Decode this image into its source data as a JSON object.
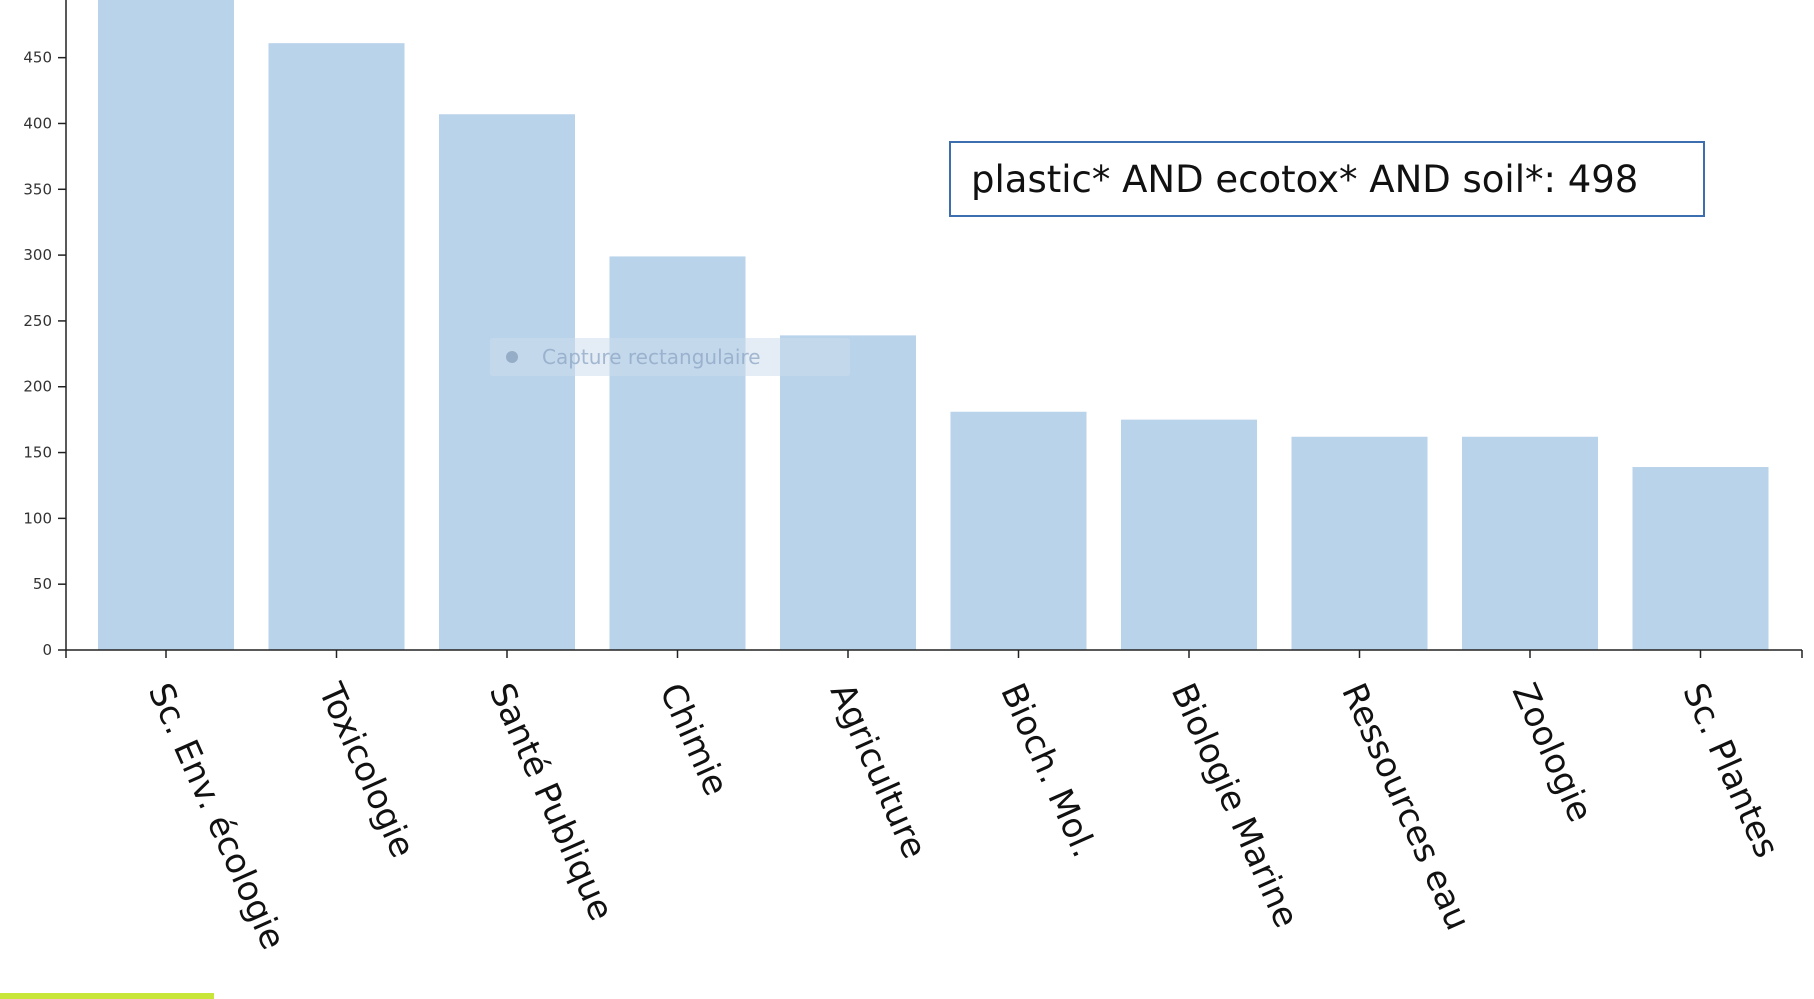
{
  "chart_data": {
    "type": "bar",
    "categories": [
      "Sc. Env. écologie",
      "Toxicologie",
      "Santé Publique",
      "Chimie",
      "Agriculture",
      "Bioch. Mol.",
      "Biologie Marine",
      "Ressources eau",
      "Zoologie",
      "Sc. Plantes"
    ],
    "values": [
      498,
      461,
      407,
      299,
      239,
      181,
      175,
      162,
      162,
      139
    ],
    "ylim": [
      0,
      490
    ],
    "yticks": [
      0,
      50,
      100,
      150,
      200,
      250,
      300,
      350,
      400,
      450
    ],
    "grid": false,
    "bar_color": "#b9d3ea",
    "annotation": "plastic* AND ecotox* AND soil*: 498"
  },
  "overlay": {
    "text": "Capture rectangulaire"
  },
  "colors": {
    "bar": "#b9d3ea",
    "axis": "#222222",
    "annotation_border": "#3d6fb0",
    "accent": "#c8e63a"
  }
}
